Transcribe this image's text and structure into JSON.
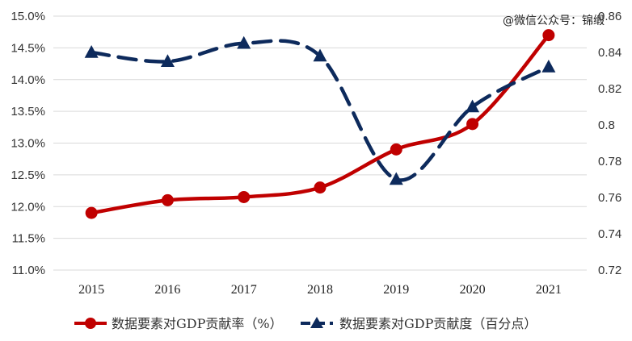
{
  "chart_data": {
    "type": "line",
    "categories": [
      "2015",
      "2016",
      "2017",
      "2018",
      "2019",
      "2020",
      "2021"
    ],
    "series": [
      {
        "name": "数据要素对GDP贡献率（%）",
        "axis": "left",
        "color": "#c00000",
        "marker": "circle",
        "line_style": "solid",
        "values": [
          11.9,
          12.1,
          12.15,
          12.3,
          12.9,
          13.3,
          14.7
        ]
      },
      {
        "name": "数据要素对GDP贡献度（百分点）",
        "axis": "right",
        "color": "#0d2a5c",
        "marker": "triangle",
        "line_style": "dashed",
        "values": [
          0.84,
          0.835,
          0.845,
          0.838,
          0.77,
          0.81,
          0.832
        ]
      }
    ],
    "y_left": {
      "min": 11.0,
      "max": 15.0,
      "tick_labels": [
        "11.0%",
        "11.5%",
        "12.0%",
        "12.5%",
        "13.0%",
        "13.5%",
        "14.0%",
        "14.5%",
        "15.0%"
      ]
    },
    "y_right": {
      "min": 0.72,
      "max": 0.86,
      "tick_labels": [
        "0.72",
        "0.74",
        "0.76",
        "0.78",
        "0.8",
        "0.82",
        "0.84",
        "0.86"
      ]
    },
    "grid": true,
    "legend_position": "bottom"
  },
  "watermark": "@微信公众号：锦缎"
}
